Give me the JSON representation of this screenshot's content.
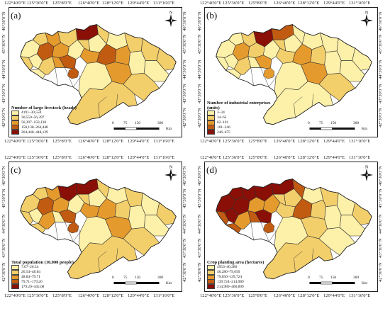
{
  "lon_labels": [
    "122°40'0\"E",
    "125°36'0\"E",
    "125°8'0\"E",
    "126°40'0\"E",
    "128°12'0\"E",
    "129°44'0\"E",
    "131°16'0\"E"
  ],
  "lat_labels": [
    "46°30'0\"N",
    "45°30'0\"N",
    "44°30'0\"N",
    "43°30'0\"N",
    "42°30'0\"N"
  ],
  "north_letter": "N",
  "scale": {
    "ticks": [
      "0",
      "75",
      "150",
      "300"
    ],
    "unit": "Km"
  },
  "panels": [
    {
      "label": "(a)",
      "legend_title": "Number of large livestock (heads)",
      "classes": [
        {
          "range": "4191–30,550",
          "color": "#fdf0a8"
        },
        {
          "range": "30,550–56,397",
          "color": "#f3cf6c"
        },
        {
          "range": "56,397–150,138",
          "color": "#e59a2e"
        },
        {
          "range": "150,138–264,448",
          "color": "#c15b12"
        },
        {
          "range": "264,448–448,129",
          "color": "#8a0f06"
        }
      ],
      "palette_order": [
        0,
        1,
        2,
        1,
        0,
        3,
        2,
        1,
        4,
        0,
        1,
        2,
        3,
        0,
        1,
        1,
        0,
        2,
        0,
        1,
        3,
        2,
        1,
        0,
        1,
        0,
        2,
        1,
        0,
        1
      ]
    },
    {
      "label": "(b)",
      "legend_title": "Number of industrial enterprises (units)",
      "classes": [
        {
          "range": "3–34",
          "color": "#fdf0a8"
        },
        {
          "range": "34–62",
          "color": "#f3cf6c"
        },
        {
          "range": "62–101",
          "color": "#e59a2e"
        },
        {
          "range": "101–246",
          "color": "#c15b12"
        },
        {
          "range": "246–675",
          "color": "#8a0f06"
        }
      ],
      "palette_order": [
        0,
        0,
        1,
        0,
        0,
        2,
        1,
        4,
        3,
        0,
        1,
        0,
        2,
        0,
        1,
        0,
        0,
        1,
        0,
        0,
        2,
        1,
        0,
        0,
        0,
        0,
        2,
        1,
        0,
        0
      ]
    },
    {
      "label": "(c)",
      "legend_title": "Total population (10,000 people)",
      "classes": [
        {
          "range": "7.67–26.54",
          "color": "#fdf0a8"
        },
        {
          "range": "26.54–48.84",
          "color": "#f3cf6c"
        },
        {
          "range": "48.84–79.71",
          "color": "#e59a2e"
        },
        {
          "range": "79.71–179.20",
          "color": "#c15b12"
        },
        {
          "range": "179.20–445.08",
          "color": "#8a0f06"
        }
      ],
      "palette_order": [
        1,
        1,
        2,
        1,
        0,
        3,
        2,
        4,
        4,
        1,
        2,
        0,
        3,
        0,
        1,
        1,
        0,
        2,
        0,
        1,
        2,
        1,
        0,
        0,
        1,
        0,
        2,
        1,
        0,
        1
      ]
    },
    {
      "label": "(d)",
      "legend_title": "Crop planting area (hectares)",
      "classes": [
        {
          "range": "4953–40,280",
          "color": "#fdf0a8"
        },
        {
          "range": "40,280–79,650",
          "color": "#f3cf6c"
        },
        {
          "range": "79,650–139,724",
          "color": "#e59a2e"
        },
        {
          "range": "139,724–214,989",
          "color": "#c15b12"
        },
        {
          "range": "214,989–400,899",
          "color": "#8a0f06"
        }
      ],
      "palette_order": [
        4,
        4,
        4,
        3,
        4,
        4,
        2,
        4,
        4,
        3,
        2,
        3,
        4,
        2,
        1,
        3,
        1,
        1,
        0,
        1,
        3,
        1,
        0,
        0,
        1,
        0,
        1,
        0,
        0,
        1
      ]
    }
  ]
}
